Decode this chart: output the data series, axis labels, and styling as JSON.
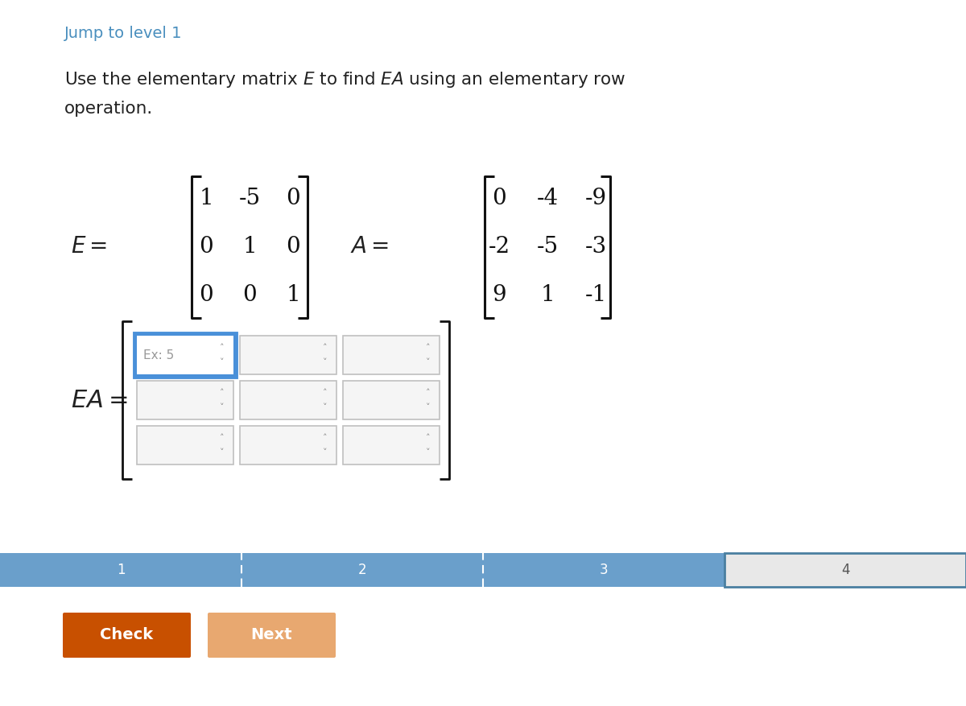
{
  "title_link": "Jump to level 1",
  "title_link_color": "#4a8fbe",
  "E_matrix": [
    [
      "1",
      "-5",
      "0"
    ],
    [
      "0",
      "1",
      "0"
    ],
    [
      "0",
      "0",
      "1"
    ]
  ],
  "A_matrix": [
    [
      "0",
      "-4",
      "-9"
    ],
    [
      "-2",
      "-5",
      "-3"
    ],
    [
      "9",
      "1",
      "-1"
    ]
  ],
  "input_placeholder": "Ex: 5",
  "progress_labels": [
    "1",
    "2",
    "3",
    "4"
  ],
  "progress_active_color": "#6a9fcb",
  "progress_inactive_color": "#e8e8e8",
  "progress_inactive_border": "#4a7fa0",
  "check_button_color": "#c85000",
  "next_button_color": "#e8a870",
  "button_text_color": "#ffffff",
  "bg_color": "#ffffff",
  "font_color": "#222222",
  "active_input_border": "#4a90d9",
  "active_input_bg": "#d6eaf8",
  "inactive_input_border": "#c0c0c0",
  "inactive_input_bg": "#f5f5f5",
  "bracket_color": "#111111",
  "matrix_font_color": "#111111"
}
